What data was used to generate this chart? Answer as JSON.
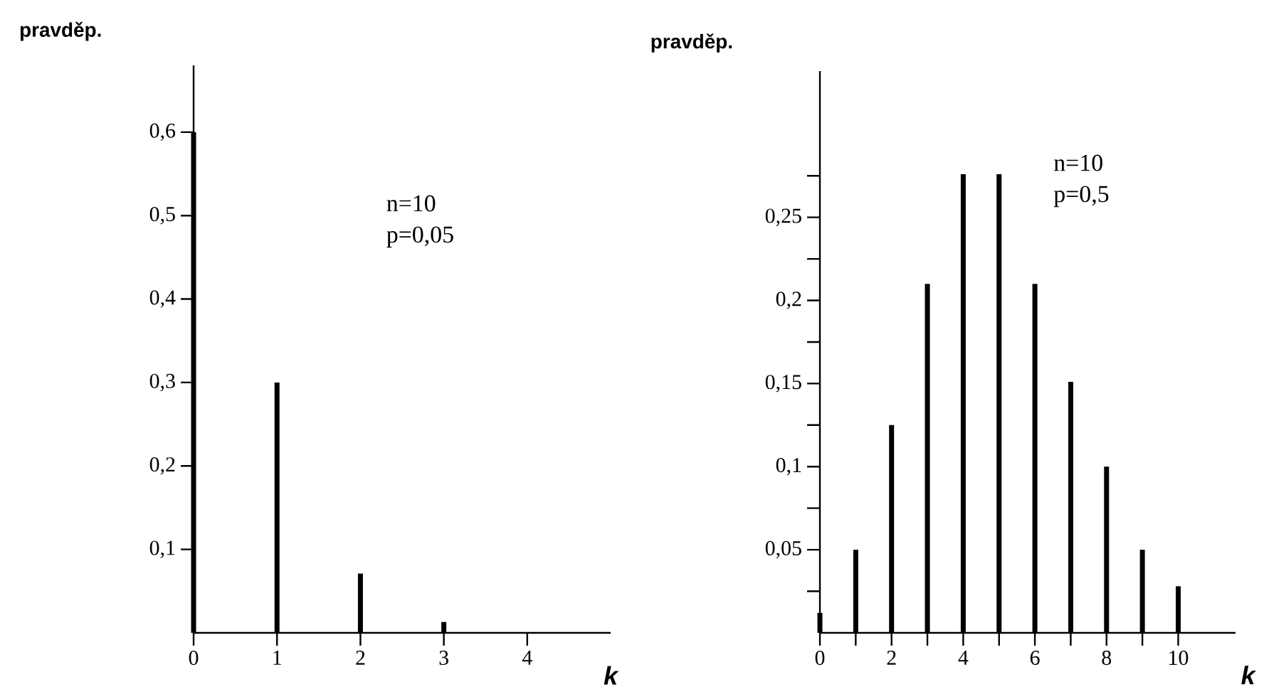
{
  "chart_data": [
    {
      "type": "bar",
      "ylabel": "pravděp.",
      "xlabel": "k",
      "annotations": [
        "n=10",
        "p=0,05"
      ],
      "color": "#000000",
      "x": [
        0,
        1,
        2,
        3
      ],
      "values": [
        0.6,
        0.3,
        0.071,
        0.013
      ],
      "xlim": [
        0,
        5
      ],
      "ylim": [
        0,
        0.68
      ],
      "xticks": [
        0,
        1,
        2,
        3,
        4
      ],
      "yticks": [
        {
          "value": 0.1,
          "label": "0,1"
        },
        {
          "value": 0.2,
          "label": "0,2"
        },
        {
          "value": 0.3,
          "label": "0,3"
        },
        {
          "value": 0.4,
          "label": "0,4"
        },
        {
          "value": 0.5,
          "label": "0,5"
        },
        {
          "value": 0.6,
          "label": "0,6"
        }
      ]
    },
    {
      "type": "bar",
      "ylabel": "pravděp.",
      "xlabel": "k",
      "annotations": [
        "n=10",
        "p=0,5"
      ],
      "color": "#000000",
      "x": [
        0,
        1,
        2,
        3,
        4,
        5,
        6,
        7,
        8,
        9,
        10
      ],
      "values": [
        0.012,
        0.05,
        0.125,
        0.21,
        0.276,
        0.276,
        0.21,
        0.151,
        0.1,
        0.05,
        0.028
      ],
      "xlim": [
        0,
        11.6
      ],
      "ylim": [
        0,
        0.338
      ],
      "xticks": [
        0,
        {
          "value": 1,
          "label": null
        },
        2,
        {
          "value": 3,
          "label": null
        },
        4,
        {
          "value": 5,
          "label": null
        },
        6,
        {
          "value": 7,
          "label": null
        },
        8,
        {
          "value": 9,
          "label": null
        },
        10
      ],
      "yticks": [
        {
          "value": 0.025,
          "label": null
        },
        {
          "value": 0.05,
          "label": "0,05"
        },
        {
          "value": 0.075,
          "label": null
        },
        {
          "value": 0.1,
          "label": "0,1"
        },
        {
          "value": 0.125,
          "label": null
        },
        {
          "value": 0.15,
          "label": "0,15"
        },
        {
          "value": 0.175,
          "label": null
        },
        {
          "value": 0.2,
          "label": "0,2"
        },
        {
          "value": 0.225,
          "label": null
        },
        {
          "value": 0.25,
          "label": "0,25"
        },
        {
          "value": 0.275,
          "label": null
        }
      ]
    }
  ]
}
